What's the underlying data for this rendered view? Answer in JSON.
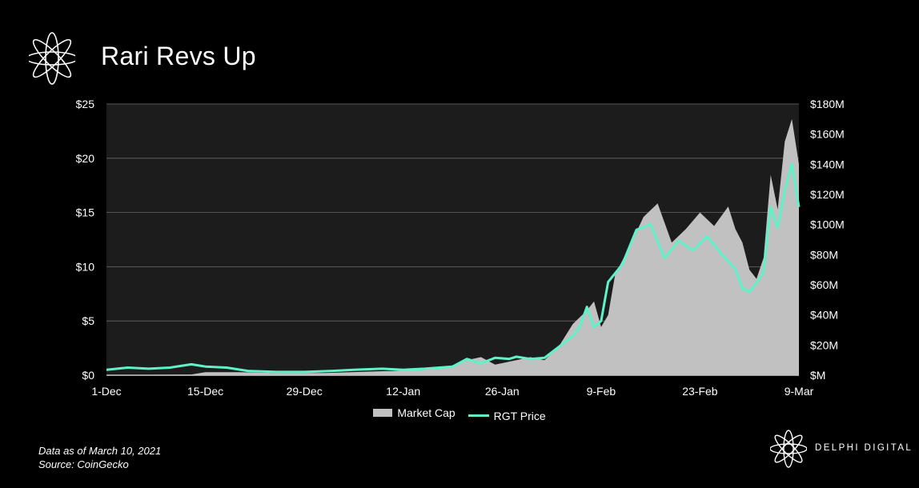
{
  "header": {
    "title": "Rari Revs Up",
    "logo_icon": "delphi-flower-logo-icon"
  },
  "footer": {
    "note": "Data as of March 10, 2021",
    "source": "Source: CoinGecko",
    "brand": "DELPHI DIGITAL",
    "brand_icon": "delphi-flower-logo-icon"
  },
  "colors": {
    "background": "#000000",
    "plot_background": "#1c1c1c",
    "area": "#c1c1c1",
    "line": "#5ef2c8",
    "text": "#ffffff"
  },
  "chart_data": {
    "type": "area",
    "title": "Rari Revs Up",
    "x_tick_labels": [
      "1-Dec",
      "15-Dec",
      "29-Dec",
      "12-Jan",
      "26-Jan",
      "9-Feb",
      "23-Feb",
      "9-Mar"
    ],
    "x_start": "2020-12-01",
    "x_end": "2021-03-09",
    "left_axis": {
      "ticks": [
        "$0",
        "$5",
        "$10",
        "$15",
        "$20",
        "$25"
      ],
      "range": [
        0,
        25
      ]
    },
    "right_axis": {
      "ticks": [
        "$M",
        "$20M",
        "$40M",
        "$60M",
        "$80M",
        "$100M",
        "$120M",
        "$140M",
        "$160M",
        "$180M"
      ],
      "range": [
        0,
        180
      ]
    },
    "grid": true,
    "legend_position": "bottom",
    "series": [
      {
        "name": "Market Cap",
        "type": "area",
        "axis": "right",
        "points": [
          [
            "2020-12-01",
            0.3
          ],
          [
            "2020-12-07",
            0.3
          ],
          [
            "2020-12-13",
            0.5
          ],
          [
            "2020-12-15",
            2.0
          ],
          [
            "2020-12-20",
            2.0
          ],
          [
            "2020-12-25",
            1.5
          ],
          [
            "2021-01-01",
            1.5
          ],
          [
            "2021-01-08",
            2.5
          ],
          [
            "2021-01-12",
            3.0
          ],
          [
            "2021-01-18",
            5.0
          ],
          [
            "2021-01-21",
            10.0
          ],
          [
            "2021-01-23",
            12.0
          ],
          [
            "2021-01-25",
            7.0
          ],
          [
            "2021-01-28",
            10.0
          ],
          [
            "2021-01-30",
            12.0
          ],
          [
            "2021-02-01",
            10.0
          ],
          [
            "2021-02-03",
            19.0
          ],
          [
            "2021-02-05",
            34.0
          ],
          [
            "2021-02-07",
            43.0
          ],
          [
            "2021-02-08",
            49.0
          ],
          [
            "2021-02-09",
            32.0
          ],
          [
            "2021-02-10",
            40.0
          ],
          [
            "2021-02-11",
            67.0
          ],
          [
            "2021-02-13",
            85.0
          ],
          [
            "2021-02-15",
            105.0
          ],
          [
            "2021-02-17",
            114.0
          ],
          [
            "2021-02-19",
            88.0
          ],
          [
            "2021-02-21",
            97.0
          ],
          [
            "2021-02-23",
            108.0
          ],
          [
            "2021-02-25",
            99.0
          ],
          [
            "2021-02-27",
            112.0
          ],
          [
            "2021-02-28",
            97.0
          ],
          [
            "2021-03-01",
            88.0
          ],
          [
            "2021-03-02",
            70.0
          ],
          [
            "2021-03-03",
            64.0
          ],
          [
            "2021-03-04",
            78.0
          ],
          [
            "2021-03-05",
            133.0
          ],
          [
            "2021-03-06",
            110.0
          ],
          [
            "2021-03-07",
            155.0
          ],
          [
            "2021-03-08",
            170.0
          ],
          [
            "2021-03-09",
            140.0
          ]
        ]
      },
      {
        "name": "RGT Price",
        "type": "line",
        "axis": "left",
        "points": [
          [
            "2020-12-01",
            0.5
          ],
          [
            "2020-12-04",
            0.7
          ],
          [
            "2020-12-07",
            0.6
          ],
          [
            "2020-12-10",
            0.7
          ],
          [
            "2020-12-13",
            1.0
          ],
          [
            "2020-12-15",
            0.8
          ],
          [
            "2020-12-18",
            0.7
          ],
          [
            "2020-12-21",
            0.4
          ],
          [
            "2020-12-25",
            0.3
          ],
          [
            "2020-12-29",
            0.3
          ],
          [
            "2021-01-02",
            0.4
          ],
          [
            "2021-01-05",
            0.5
          ],
          [
            "2021-01-09",
            0.6
          ],
          [
            "2021-01-12",
            0.5
          ],
          [
            "2021-01-15",
            0.6
          ],
          [
            "2021-01-19",
            0.8
          ],
          [
            "2021-01-21",
            1.5
          ],
          [
            "2021-01-23",
            1.1
          ],
          [
            "2021-01-25",
            1.6
          ],
          [
            "2021-01-27",
            1.5
          ],
          [
            "2021-01-28",
            1.7
          ],
          [
            "2021-01-30",
            1.5
          ],
          [
            "2021-02-01",
            1.6
          ],
          [
            "2021-02-03",
            2.6
          ],
          [
            "2021-02-05",
            3.6
          ],
          [
            "2021-02-06",
            4.5
          ],
          [
            "2021-02-07",
            6.3
          ],
          [
            "2021-02-08",
            4.4
          ],
          [
            "2021-02-09",
            5.0
          ],
          [
            "2021-02-10",
            8.6
          ],
          [
            "2021-02-12",
            10.2
          ],
          [
            "2021-02-14",
            13.4
          ],
          [
            "2021-02-16",
            13.9
          ],
          [
            "2021-02-18",
            10.8
          ],
          [
            "2021-02-20",
            12.4
          ],
          [
            "2021-02-22",
            11.5
          ],
          [
            "2021-02-24",
            12.8
          ],
          [
            "2021-02-26",
            11.2
          ],
          [
            "2021-02-28",
            9.8
          ],
          [
            "2021-03-01",
            8.0
          ],
          [
            "2021-03-02",
            7.7
          ],
          [
            "2021-03-03",
            8.5
          ],
          [
            "2021-03-04",
            9.5
          ],
          [
            "2021-03-05",
            15.5
          ],
          [
            "2021-03-06",
            13.6
          ],
          [
            "2021-03-07",
            17.0
          ],
          [
            "2021-03-08",
            19.5
          ],
          [
            "2021-03-09",
            15.5
          ]
        ]
      }
    ]
  }
}
